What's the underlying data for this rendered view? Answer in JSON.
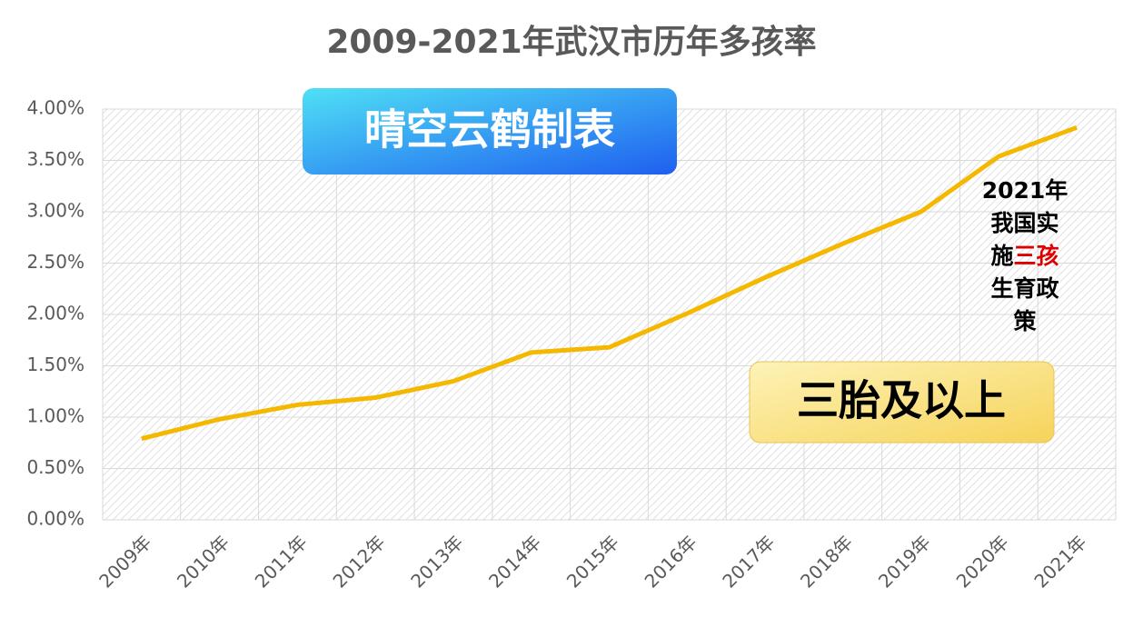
{
  "chart_data": {
    "type": "line",
    "title": "2009-2021年武汉市历年多孩率",
    "watermark": "晴空云鹤制表",
    "categories": [
      "2009年",
      "2010年",
      "2011年",
      "2012年",
      "2013年",
      "2014年",
      "2015年",
      "2016年",
      "2017年",
      "2018年",
      "2019年",
      "2020年",
      "2021年"
    ],
    "series": [
      {
        "name": "三胎及以上",
        "color": "#f5b800",
        "values": [
          0.79,
          0.98,
          1.12,
          1.19,
          1.35,
          1.63,
          1.68,
          2.01,
          2.36,
          2.69,
          3.0,
          3.54,
          3.82
        ]
      }
    ],
    "ylim": [
      0,
      4
    ],
    "yticks": [
      {
        "value": 0,
        "label": "0.00%"
      },
      {
        "value": 0.5,
        "label": "0.50%"
      },
      {
        "value": 1,
        "label": "1.00%"
      },
      {
        "value": 1.5,
        "label": "1.50%"
      },
      {
        "value": 2,
        "label": "2.00%"
      },
      {
        "value": 2.5,
        "label": "2.50%"
      },
      {
        "value": 3,
        "label": "3.00%"
      },
      {
        "value": 3.5,
        "label": "3.50%"
      },
      {
        "value": 4,
        "label": "4.00%"
      }
    ],
    "grid": true,
    "annotation": [
      "2021年",
      "我国实",
      "施",
      "三孩",
      "生育政",
      "策"
    ]
  }
}
